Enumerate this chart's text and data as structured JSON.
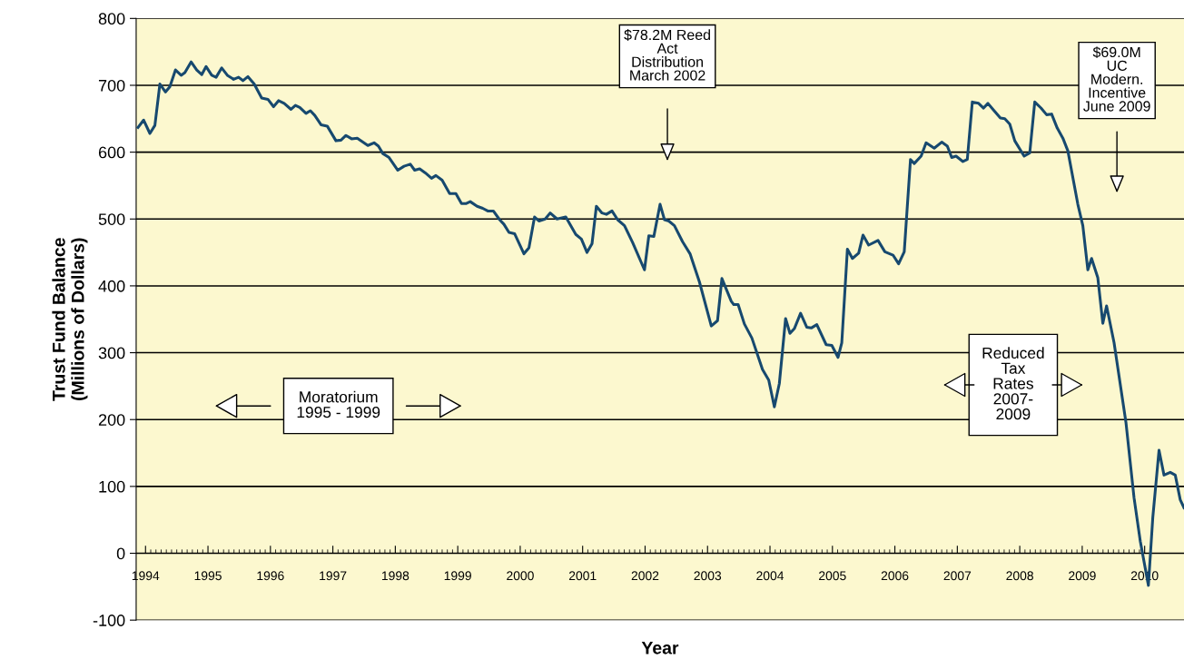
{
  "chart_data": {
    "type": "line",
    "xlabel": "Year",
    "ylabel": "Trust Fund Balance\n(Millions of Dollars)",
    "xlim": [
      1993.85,
      2010.63
    ],
    "xticks": [
      1994,
      1995,
      1996,
      1997,
      1998,
      1999,
      2000,
      2001,
      2002,
      2003,
      2004,
      2005,
      2006,
      2007,
      2008,
      2009,
      2010
    ],
    "ylim": [
      -100,
      800
    ],
    "yticks": [
      -100,
      0,
      100,
      200,
      300,
      400,
      500,
      600,
      700,
      800
    ],
    "grid": "y",
    "legend": false,
    "marker": "none",
    "line_style": "solid",
    "series": [
      {
        "color": "#17496f",
        "x": [
          1993.88,
          1993.97,
          1994.07,
          1994.15,
          1994.23,
          1994.32,
          1994.39,
          1994.48,
          1994.57,
          1994.63,
          1994.73,
          1994.82,
          1994.9,
          1994.97,
          1995.06,
          1995.13,
          1995.22,
          1995.31,
          1995.41,
          1995.49,
          1995.56,
          1995.64,
          1995.74,
          1995.86,
          1995.96,
          1996.05,
          1996.13,
          1996.22,
          1996.33,
          1996.4,
          1996.47,
          1996.57,
          1996.64,
          1996.71,
          1996.81,
          1996.91,
          1997.05,
          1997.13,
          1997.21,
          1997.3,
          1997.39,
          1997.56,
          1997.66,
          1997.73,
          1997.8,
          1997.9,
          1998.04,
          1998.14,
          1998.24,
          1998.31,
          1998.39,
          1998.48,
          1998.58,
          1998.65,
          1998.75,
          1998.87,
          1998.97,
          1999.06,
          1999.13,
          1999.2,
          1999.31,
          1999.4,
          1999.48,
          1999.57,
          1999.67,
          1999.74,
          1999.82,
          1999.91,
          2000.06,
          2000.14,
          2000.23,
          2000.3,
          2000.4,
          2000.48,
          2000.59,
          2000.73,
          2000.89,
          2000.98,
          2001.07,
          2001.15,
          2001.22,
          2001.31,
          2001.38,
          2001.47,
          2001.56,
          2001.67,
          2001.8,
          2001.99,
          2002.06,
          2002.14,
          2002.24,
          2002.31,
          2002.38,
          2002.47,
          2002.6,
          2002.72,
          2002.87,
          2003.06,
          2003.16,
          2003.23,
          2003.38,
          2003.42,
          2003.49,
          2003.59,
          2003.71,
          2003.88,
          2003.98,
          2004.07,
          2004.15,
          2004.25,
          2004.32,
          2004.39,
          2004.49,
          2004.59,
          2004.66,
          2004.75,
          2004.9,
          2004.99,
          2005.09,
          2005.15,
          2005.24,
          2005.32,
          2005.42,
          2005.49,
          2005.58,
          2005.73,
          2005.84,
          2005.97,
          2006.06,
          2006.15,
          2006.25,
          2006.31,
          2006.42,
          2006.5,
          2006.63,
          2006.75,
          2006.84,
          2006.91,
          2006.98,
          2007.09,
          2007.16,
          2007.24,
          2007.34,
          2007.42,
          2007.49,
          2007.58,
          2007.69,
          2007.76,
          2007.84,
          2007.92,
          2008.07,
          2008.16,
          2008.24,
          2008.34,
          2008.43,
          2008.51,
          2008.6,
          2008.69,
          2008.77,
          2008.93,
          2009.01,
          2009.09,
          2009.15,
          2009.25,
          2009.33,
          2009.39,
          2009.51,
          2009.7,
          2009.83,
          2009.93,
          2010.06,
          2010.13,
          2010.23,
          2010.31,
          2010.41,
          2010.49,
          2010.57,
          2010.63
        ],
        "values": [
          637,
          648,
          628,
          640,
          702,
          690,
          698,
          723,
          715,
          719,
          735,
          723,
          716,
          728,
          715,
          712,
          726,
          715,
          709,
          712,
          707,
          713,
          702,
          681,
          679,
          668,
          677,
          673,
          664,
          670,
          667,
          658,
          662,
          655,
          641,
          639,
          617,
          618,
          625,
          620,
          621,
          610,
          614,
          609,
          598,
          592,
          573,
          579,
          582,
          573,
          575,
          569,
          561,
          565,
          558,
          538,
          538,
          523,
          523,
          526,
          519,
          516,
          512,
          512,
          499,
          492,
          480,
          478,
          448,
          457,
          503,
          497,
          500,
          509,
          500,
          503,
          477,
          470,
          450,
          463,
          519,
          509,
          507,
          512,
          499,
          490,
          465,
          424,
          475,
          474,
          522,
          499,
          497,
          490,
          466,
          448,
          406,
          340,
          348,
          411,
          377,
          372,
          372,
          343,
          322,
          275,
          259,
          219,
          254,
          351,
          329,
          336,
          359,
          338,
          337,
          342,
          312,
          311,
          293,
          315,
          455,
          441,
          449,
          476,
          461,
          468,
          451,
          446,
          433,
          451,
          589,
          583,
          594,
          614,
          606,
          615,
          609,
          592,
          594,
          586,
          589,
          675,
          673,
          666,
          673,
          663,
          651,
          650,
          642,
          617,
          594,
          599,
          675,
          666,
          656,
          657,
          636,
          621,
          602,
          522,
          490,
          424,
          441,
          412,
          344,
          370,
          315,
          196,
          83,
          18,
          -48,
          53,
          154,
          117,
          121,
          117,
          80,
          68
        ]
      }
    ],
    "annotations": [
      "$78.2M Reed\nAct\nDistribution\nMarch 2002",
      "$69.0M\nUC\nModern.\nIncentive\nJune 2009",
      "Moratorium\n1995 - 1999",
      "Reduced\nTax\nRates\n2007-\n2009"
    ]
  }
}
